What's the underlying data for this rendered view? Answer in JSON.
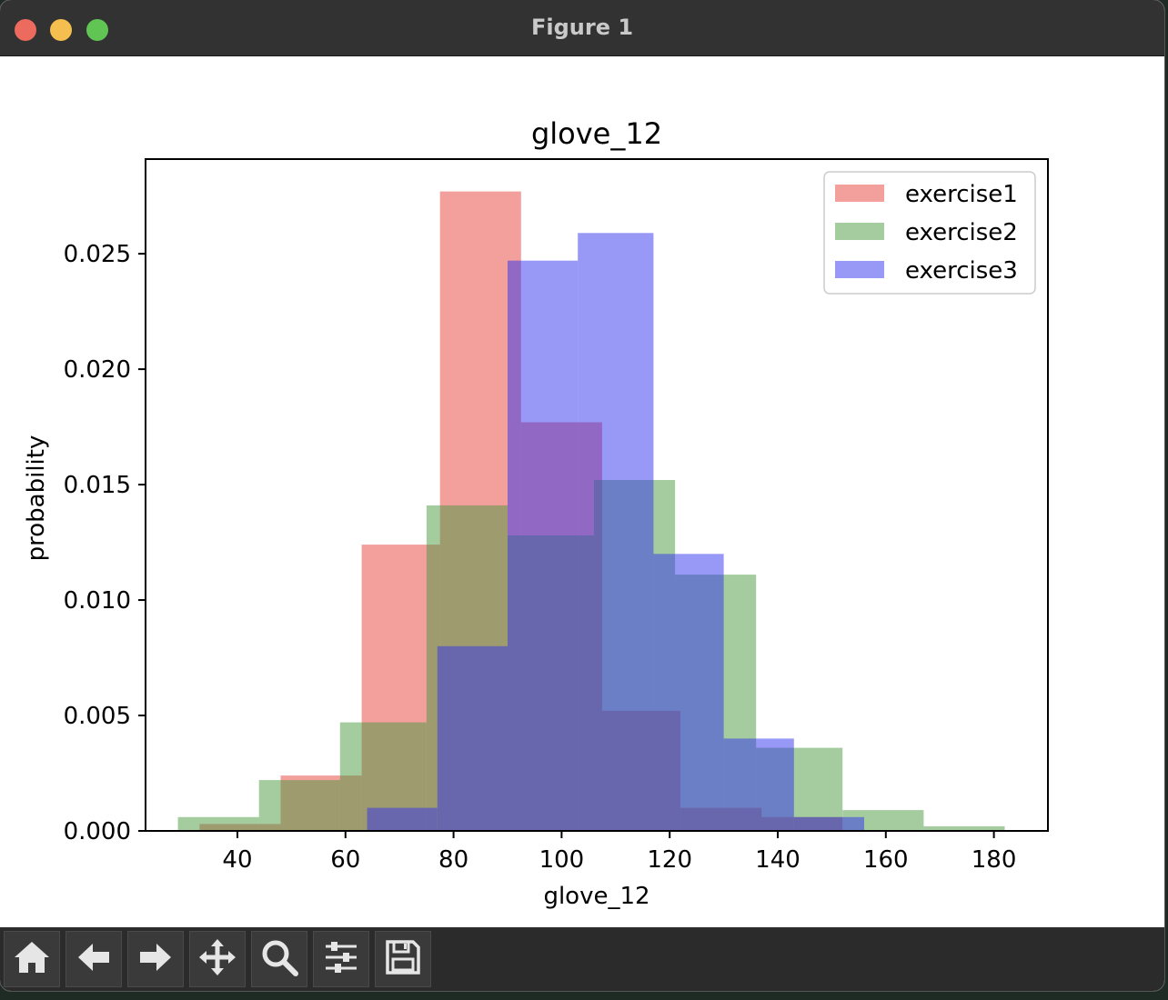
{
  "window": {
    "title": "Figure 1"
  },
  "toolbar": {
    "buttons": [
      {
        "name": "home-icon"
      },
      {
        "name": "back-arrow-icon"
      },
      {
        "name": "forward-arrow-icon"
      },
      {
        "name": "pan-move-icon"
      },
      {
        "name": "zoom-magnifier-icon"
      },
      {
        "name": "configure-subplots-icon"
      },
      {
        "name": "save-floppy-icon"
      }
    ]
  },
  "chart_data": {
    "type": "bar",
    "title": "glove_12",
    "xlabel": "glove_12",
    "ylabel": "probability",
    "xlim": [
      23,
      190
    ],
    "ylim": [
      0,
      0.0291
    ],
    "xticks": [
      "40",
      "60",
      "80",
      "100",
      "120",
      "140",
      "160",
      "180"
    ],
    "yticks": [
      "0.000",
      "0.005",
      "0.010",
      "0.015",
      "0.020",
      "0.025"
    ],
    "legend_position": "top-right",
    "grid": false,
    "series": [
      {
        "name": "exercise1",
        "color": "#e8403a",
        "opacity": 0.5,
        "bins": [
          {
            "x0": 33,
            "x1": 48,
            "y": 0.0003
          },
          {
            "x0": 48,
            "x1": 63,
            "y": 0.0024
          },
          {
            "x0": 63,
            "x1": 77.5,
            "y": 0.0124
          },
          {
            "x0": 77.5,
            "x1": 92.5,
            "y": 0.0277
          },
          {
            "x0": 92.5,
            "x1": 107.5,
            "y": 0.0177
          },
          {
            "x0": 107.5,
            "x1": 122,
            "y": 0.0052
          },
          {
            "x0": 122,
            "x1": 137,
            "y": 0.001
          },
          {
            "x0": 137,
            "x1": 152,
            "y": 0.0006
          }
        ]
      },
      {
        "name": "exercise2",
        "color": "#4a9a40",
        "opacity": 0.5,
        "bins": [
          {
            "x0": 29,
            "x1": 44,
            "y": 0.0006
          },
          {
            "x0": 44,
            "x1": 59,
            "y": 0.0022
          },
          {
            "x0": 59,
            "x1": 75,
            "y": 0.0047
          },
          {
            "x0": 75,
            "x1": 90,
            "y": 0.0141
          },
          {
            "x0": 90,
            "x1": 106,
            "y": 0.0128
          },
          {
            "x0": 106,
            "x1": 121,
            "y": 0.0152
          },
          {
            "x0": 121,
            "x1": 136,
            "y": 0.0111
          },
          {
            "x0": 136,
            "x1": 152,
            "y": 0.0036
          },
          {
            "x0": 152,
            "x1": 167,
            "y": 0.0009
          },
          {
            "x0": 167,
            "x1": 182,
            "y": 0.0002
          }
        ]
      },
      {
        "name": "exercise3",
        "color": "#3232ee",
        "opacity": 0.5,
        "bins": [
          {
            "x0": 64,
            "x1": 77,
            "y": 0.001
          },
          {
            "x0": 77,
            "x1": 90,
            "y": 0.008
          },
          {
            "x0": 90,
            "x1": 103,
            "y": 0.0247
          },
          {
            "x0": 103,
            "x1": 117,
            "y": 0.0259
          },
          {
            "x0": 117,
            "x1": 130,
            "y": 0.012
          },
          {
            "x0": 130,
            "x1": 143,
            "y": 0.004
          },
          {
            "x0": 143,
            "x1": 156,
            "y": 0.0006
          }
        ]
      }
    ]
  }
}
